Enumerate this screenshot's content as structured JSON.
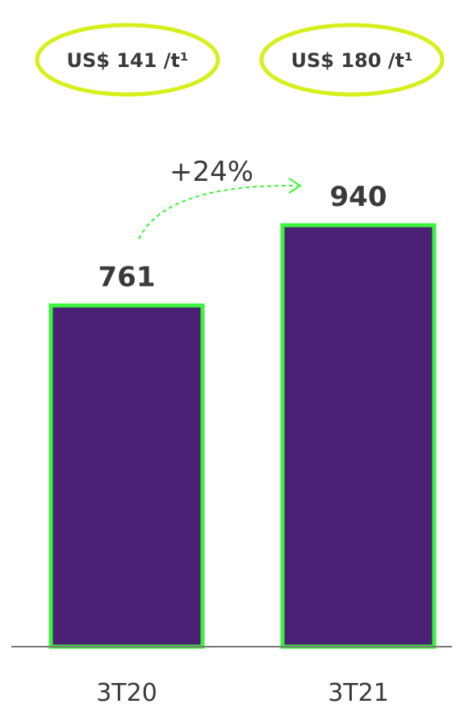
{
  "colors": {
    "bar_fill": "#4a2174",
    "bar_stroke": "#3cf23c",
    "badge_stroke": "#d7ef1c",
    "arrow": "#3cf23c",
    "axis": "#777777",
    "text": "#3a3a3a"
  },
  "badges": [
    "US$ 141 /t¹",
    "US$ 180 /t¹"
  ],
  "growth_label": "+24%",
  "chart_data": {
    "type": "bar",
    "categories": [
      "3T20",
      "3T21"
    ],
    "values": [
      761,
      940
    ],
    "data_labels": [
      "761",
      "940"
    ],
    "title": "",
    "xlabel": "",
    "ylabel": "",
    "ylim": [
      0,
      940
    ]
  }
}
